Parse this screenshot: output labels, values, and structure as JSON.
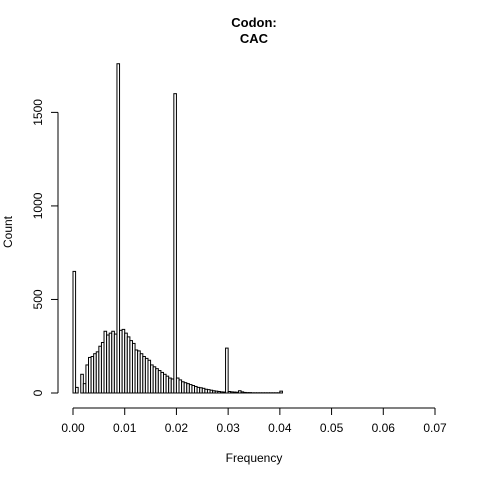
{
  "chart_data": {
    "type": "bar",
    "title": "Codon:",
    "subtitle": "CAC",
    "xlabel": "Frequency",
    "ylabel": "Count",
    "xlim": [
      0,
      0.07
    ],
    "ylim": [
      0,
      1780
    ],
    "x_ticks": [
      "0.00",
      "0.01",
      "0.02",
      "0.03",
      "0.04",
      "0.05",
      "0.06",
      "0.07"
    ],
    "y_ticks": [
      "0",
      "500",
      "1000",
      "1500"
    ],
    "bin_width": 0.0005,
    "bin_starts": [
      0.0,
      0.0005,
      0.001,
      0.0015,
      0.002,
      0.0025,
      0.003,
      0.0035,
      0.004,
      0.0045,
      0.005,
      0.0055,
      0.006,
      0.0065,
      0.007,
      0.0075,
      0.008,
      0.0085,
      0.009,
      0.0095,
      0.01,
      0.0105,
      0.011,
      0.0115,
      0.012,
      0.0125,
      0.013,
      0.0135,
      0.014,
      0.0145,
      0.015,
      0.0155,
      0.016,
      0.0165,
      0.017,
      0.0175,
      0.018,
      0.0185,
      0.019,
      0.0195,
      0.02,
      0.0205,
      0.021,
      0.0215,
      0.022,
      0.0225,
      0.023,
      0.0235,
      0.024,
      0.0245,
      0.025,
      0.0255,
      0.026,
      0.0265,
      0.027,
      0.0275,
      0.028,
      0.0285,
      0.029,
      0.0295,
      0.03,
      0.0305,
      0.031,
      0.0315,
      0.032,
      0.0325,
      0.033,
      0.0335,
      0.034,
      0.0345,
      0.035,
      0.0355,
      0.036,
      0.0365,
      0.037,
      0.0375,
      0.038,
      0.0385,
      0.039,
      0.0395,
      0.04
    ],
    "counts": [
      650,
      30,
      0,
      100,
      50,
      150,
      190,
      195,
      210,
      220,
      250,
      270,
      330,
      310,
      320,
      330,
      315,
      1760,
      335,
      340,
      320,
      300,
      280,
      265,
      230,
      225,
      210,
      195,
      185,
      175,
      150,
      140,
      130,
      120,
      110,
      100,
      90,
      80,
      75,
      1600,
      80,
      70,
      60,
      55,
      50,
      45,
      40,
      35,
      30,
      28,
      25,
      20,
      18,
      15,
      12,
      10,
      8,
      6,
      5,
      240,
      8,
      6,
      5,
      4,
      12,
      6,
      3,
      2,
      2,
      1,
      1,
      1,
      1,
      1,
      1,
      1,
      1,
      1,
      1,
      1,
      10
    ]
  }
}
